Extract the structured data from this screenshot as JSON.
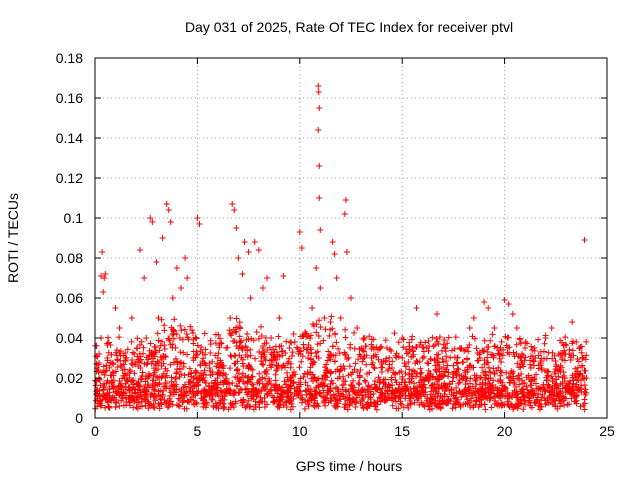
{
  "chart_data": {
    "type": "scatter",
    "title": "Day 031 of 2025, Rate Of TEC Index for receiver ptvl",
    "xlabel": "GPS time / hours",
    "ylabel": "ROTI / TECUs",
    "xlim": [
      0,
      25
    ],
    "ylim": [
      0,
      0.18
    ],
    "xticks": [
      0,
      5,
      10,
      15,
      20,
      25
    ],
    "xtick_labels": [
      "0",
      "5",
      "10",
      "15",
      "20",
      "25"
    ],
    "yticks": [
      0,
      0.02,
      0.04,
      0.06,
      0.08,
      0.1,
      0.12,
      0.14,
      0.16,
      0.18
    ],
    "ytick_labels": [
      "0",
      "0.02",
      "0.04",
      "0.06",
      "0.08",
      "0.1",
      "0.12",
      "0.14",
      "0.16",
      "0.18"
    ],
    "grid": true,
    "marker": "plus",
    "series": [
      {
        "name": "ROTI",
        "color": "#ff0000",
        "points": [
          [
            0.05,
            0.012
          ],
          [
            0.1,
            0.025
          ],
          [
            0.2,
            0.02
          ],
          [
            0.3,
            0.04
          ],
          [
            0.3,
            0.071
          ],
          [
            0.35,
            0.083
          ],
          [
            0.4,
            0.063
          ],
          [
            0.45,
            0.07
          ],
          [
            0.5,
            0.072
          ],
          [
            0.6,
            0.03
          ],
          [
            0.8,
            0.018
          ],
          [
            1.0,
            0.055
          ],
          [
            1.2,
            0.045
          ],
          [
            1.5,
            0.03
          ],
          [
            1.8,
            0.05
          ],
          [
            2.0,
            0.028
          ],
          [
            2.2,
            0.084
          ],
          [
            2.4,
            0.07
          ],
          [
            2.5,
            0.04
          ],
          [
            2.7,
            0.1
          ],
          [
            2.8,
            0.098
          ],
          [
            3.0,
            0.078
          ],
          [
            3.1,
            0.05
          ],
          [
            3.3,
            0.09
          ],
          [
            3.5,
            0.107
          ],
          [
            3.6,
            0.104
          ],
          [
            3.7,
            0.098
          ],
          [
            3.8,
            0.06
          ],
          [
            4.0,
            0.075
          ],
          [
            4.2,
            0.065
          ],
          [
            4.4,
            0.08
          ],
          [
            4.5,
            0.07
          ],
          [
            4.8,
            0.03
          ],
          [
            5.0,
            0.1
          ],
          [
            5.1,
            0.097
          ],
          [
            5.3,
            0.02
          ],
          [
            5.6,
            0.025
          ],
          [
            6.0,
            0.03
          ],
          [
            6.4,
            0.035
          ],
          [
            6.6,
            0.05
          ],
          [
            6.7,
            0.107
          ],
          [
            6.8,
            0.104
          ],
          [
            6.9,
            0.095
          ],
          [
            7.0,
            0.08
          ],
          [
            7.2,
            0.072
          ],
          [
            7.3,
            0.088
          ],
          [
            7.5,
            0.083
          ],
          [
            7.6,
            0.06
          ],
          [
            7.8,
            0.088
          ],
          [
            8.0,
            0.084
          ],
          [
            8.2,
            0.065
          ],
          [
            8.4,
            0.07
          ],
          [
            8.6,
            0.04
          ],
          [
            8.8,
            0.03
          ],
          [
            9.0,
            0.05
          ],
          [
            9.2,
            0.071
          ],
          [
            9.5,
            0.035
          ],
          [
            9.7,
            0.042
          ],
          [
            10.0,
            0.093
          ],
          [
            10.1,
            0.085
          ],
          [
            10.2,
            0.035
          ],
          [
            10.4,
            0.03
          ],
          [
            10.6,
            0.055
          ],
          [
            10.8,
            0.075
          ],
          [
            10.9,
            0.166
          ],
          [
            10.92,
            0.163
          ],
          [
            10.95,
            0.155
          ],
          [
            10.9,
            0.144
          ],
          [
            10.95,
            0.126
          ],
          [
            10.95,
            0.11
          ],
          [
            11.0,
            0.094
          ],
          [
            11.0,
            0.065
          ],
          [
            11.2,
            0.05
          ],
          [
            11.5,
            0.048
          ],
          [
            11.6,
            0.088
          ],
          [
            11.7,
            0.082
          ],
          [
            11.8,
            0.07
          ],
          [
            12.0,
            0.05
          ],
          [
            12.2,
            0.102
          ],
          [
            12.25,
            0.109
          ],
          [
            12.3,
            0.083
          ],
          [
            12.5,
            0.06
          ],
          [
            12.8,
            0.045
          ],
          [
            13.0,
            0.035
          ],
          [
            13.5,
            0.03
          ],
          [
            14.0,
            0.028
          ],
          [
            14.5,
            0.025
          ],
          [
            15.0,
            0.04
          ],
          [
            15.5,
            0.035
          ],
          [
            15.7,
            0.055
          ],
          [
            16.0,
            0.03
          ],
          [
            16.2,
            0.035
          ],
          [
            16.7,
            0.052
          ],
          [
            17.0,
            0.028
          ],
          [
            17.5,
            0.022
          ],
          [
            18.0,
            0.02
          ],
          [
            18.3,
            0.045
          ],
          [
            18.5,
            0.05
          ],
          [
            18.8,
            0.03
          ],
          [
            19.0,
            0.058
          ],
          [
            19.2,
            0.055
          ],
          [
            19.5,
            0.045
          ],
          [
            19.8,
            0.035
          ],
          [
            20.0,
            0.059
          ],
          [
            20.2,
            0.057
          ],
          [
            20.4,
            0.052
          ],
          [
            20.6,
            0.045
          ],
          [
            21.0,
            0.035
          ],
          [
            21.5,
            0.03
          ],
          [
            22.0,
            0.04
          ],
          [
            22.3,
            0.045
          ],
          [
            22.8,
            0.03
          ],
          [
            23.3,
            0.048
          ],
          [
            23.5,
            0.038
          ],
          [
            23.8,
            0.03
          ],
          [
            23.9,
            0.089
          ],
          [
            24.0,
            0.02
          ]
        ]
      }
    ]
  }
}
